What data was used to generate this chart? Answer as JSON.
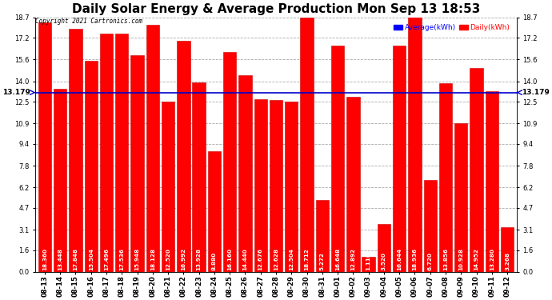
{
  "title": "Daily Solar Energy & Average Production Mon Sep 13 18:53",
  "copyright": "Copyright 2021 Cartronics.com",
  "average_value": 13.179,
  "average_label": "13.179",
  "bar_color": "#ff0000",
  "average_line_color": "#0000cc",
  "average_text_color": "#000000",
  "background_color": "#ffffff",
  "legend_average_color": "#0000ff",
  "legend_daily_color": "#ff0000",
  "legend_average": "Average(kWh)",
  "legend_daily": "Daily(kWh)",
  "categories": [
    "08-13",
    "08-14",
    "08-15",
    "08-16",
    "08-17",
    "08-18",
    "08-19",
    "08-20",
    "08-21",
    "08-22",
    "08-23",
    "08-24",
    "08-25",
    "08-26",
    "08-27",
    "08-28",
    "08-29",
    "08-30",
    "08-31",
    "09-01",
    "09-02",
    "09-03",
    "09-04",
    "09-05",
    "09-06",
    "09-07",
    "09-08",
    "09-09",
    "09-10",
    "09-11",
    "09-12"
  ],
  "values": [
    18.36,
    13.448,
    17.848,
    15.504,
    17.496,
    17.536,
    15.948,
    18.128,
    12.52,
    16.992,
    13.928,
    8.88,
    16.16,
    14.44,
    12.676,
    12.628,
    12.504,
    18.712,
    5.272,
    16.648,
    12.892,
    1.116,
    3.52,
    16.644,
    18.936,
    6.72,
    13.856,
    10.928,
    14.952,
    13.28,
    3.268
  ],
  "bar_labels": [
    "18.360",
    "13.448",
    "17.848",
    "15.504",
    "17.496",
    "17.536",
    "15.948",
    "18.128",
    "12.520",
    "16.992",
    "13.928",
    "8.880",
    "16.160",
    "14.440",
    "12.676",
    "12.628",
    "12.504",
    "18.712",
    "5.272",
    "16.648",
    "12.892",
    "1.116",
    "3.520",
    "16.644",
    "18.936",
    "6.720",
    "13.856",
    "10.928",
    "14.952",
    "13.280",
    "3.268"
  ],
  "yticks": [
    0.0,
    1.6,
    3.1,
    4.7,
    6.2,
    7.8,
    9.4,
    10.9,
    12.5,
    14.0,
    15.6,
    17.2,
    18.7
  ],
  "ymax": 18.7,
  "ymin": 0.0,
  "grid_color": "#aaaaaa",
  "title_fontsize": 11,
  "tick_fontsize": 6,
  "label_fontsize": 5.2
}
